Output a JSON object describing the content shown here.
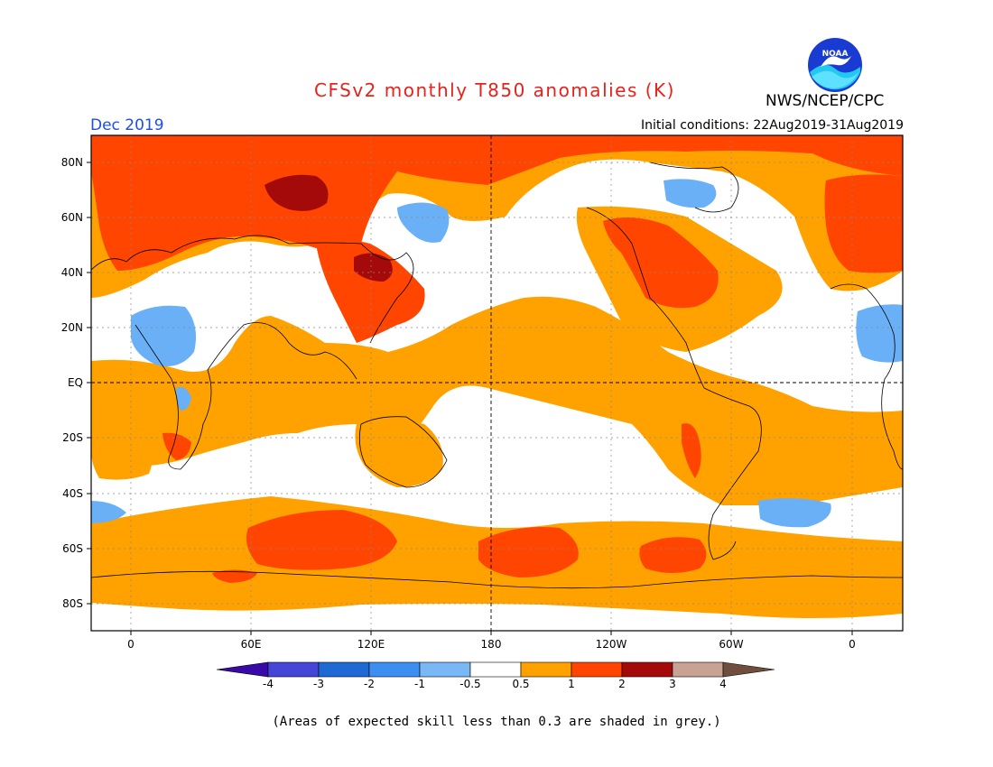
{
  "header": {
    "title": "CFSv2 monthly T850 anomalies (K)",
    "organization": "NWS/NCEP/CPC",
    "logo_text": "NOAA",
    "valid_month": "Dec 2019",
    "initial_conditions": "Initial conditions: 22Aug2019-31Aug2019"
  },
  "map": {
    "lat_labels": [
      "80N",
      "60N",
      "40N",
      "20N",
      "EQ",
      "20S",
      "40S",
      "60S",
      "80S"
    ],
    "lon_labels": [
      "0",
      "60E",
      "120E",
      "180",
      "120W",
      "60W",
      "0"
    ],
    "colors": {
      "neutral": "#ffffff",
      "warm1": "#ffa200",
      "warm2": "#ff4500",
      "warm3": "#a50a0a",
      "cool1": "#6ab0f7"
    }
  },
  "colorbar": {
    "levels": [
      "-4",
      "-3",
      "-2",
      "-1",
      "-0.5",
      "0.5",
      "1",
      "2",
      "3",
      "4"
    ],
    "colors": [
      "#3a0aa8",
      "#4545d8",
      "#1e69d4",
      "#3c8ef0",
      "#78b8f5",
      "#ffffff",
      "#ffa200",
      "#ff4500",
      "#a50a0a",
      "#c8a292",
      "#6f4e3e"
    ]
  },
  "footer": {
    "skill_note": "(Areas of expected skill less than 0.3 are shaded in grey.)"
  }
}
